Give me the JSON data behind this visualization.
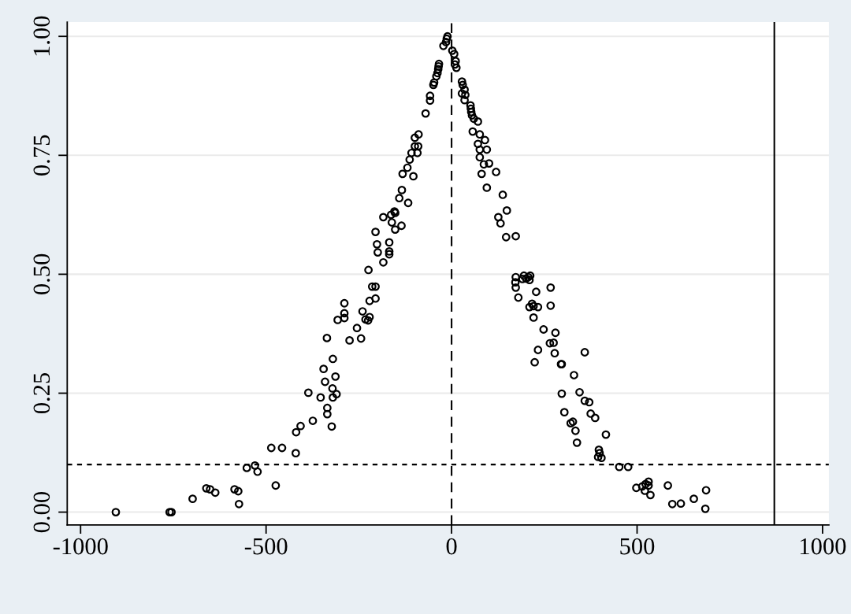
{
  "chart_data": {
    "type": "scatter",
    "x": [
      -905,
      -760,
      -755,
      -698,
      -661,
      -651,
      -637,
      -585,
      -575,
      -573,
      -552,
      -530,
      -523,
      -486,
      -474,
      -457,
      -420,
      -419,
      -407,
      -386,
      -374,
      -353,
      -336,
      -345,
      -341,
      -320,
      -313,
      -321,
      -320,
      -310,
      -335,
      -335,
      -323,
      -307,
      -289,
      -289,
      -289,
      -275,
      -255,
      -244,
      -240,
      -232,
      -225,
      -221,
      -224,
      -221,
      -214,
      -205,
      -205,
      -205,
      -201,
      -199,
      -184,
      -184,
      -168,
      -168,
      -168,
      -163,
      -154,
      -152,
      -161,
      -152,
      -135,
      -141,
      -134,
      -117,
      -132,
      -119,
      -103,
      -113,
      -108,
      -92,
      -99,
      -90,
      -89,
      -99,
      -70,
      -58,
      -58,
      -49,
      -47,
      -41,
      -38,
      -36,
      -35,
      -34,
      -22,
      -15,
      -13,
      -11,
      2,
      7,
      11,
      13,
      9,
      28,
      30,
      35,
      37,
      28,
      35,
      51,
      52,
      53,
      55,
      60,
      71,
      57,
      76,
      90,
      71,
      76,
      95,
      76,
      87,
      101,
      81,
      95,
      120,
      138,
      149,
      126,
      132,
      147,
      173,
      173,
      172,
      173,
      180,
      191,
      195,
      201,
      207,
      212,
      210,
      228,
      267,
      267,
      210,
      217,
      221,
      233,
      221,
      248,
      280,
      265,
      275,
      278,
      233,
      224,
      295,
      297,
      359,
      330,
      297,
      345,
      359,
      371,
      375,
      387,
      304,
      321,
      327,
      334,
      338,
      416,
      397,
      399,
      395,
      404,
      452,
      476,
      498,
      514,
      523,
      531,
      521,
      536,
      531,
      583,
      595,
      618,
      653,
      686,
      684
    ],
    "values": [
      0.0,
      0.0,
      0.0,
      0.028,
      0.05,
      0.048,
      0.041,
      0.048,
      0.044,
      0.017,
      0.093,
      0.098,
      0.085,
      0.135,
      0.056,
      0.135,
      0.124,
      0.168,
      0.181,
      0.251,
      0.192,
      0.241,
      0.366,
      0.301,
      0.274,
      0.322,
      0.285,
      0.26,
      0.241,
      0.248,
      0.219,
      0.206,
      0.18,
      0.404,
      0.439,
      0.418,
      0.408,
      0.361,
      0.387,
      0.365,
      0.422,
      0.405,
      0.403,
      0.41,
      0.509,
      0.444,
      0.474,
      0.474,
      0.449,
      0.589,
      0.563,
      0.546,
      0.525,
      0.62,
      0.567,
      0.548,
      0.542,
      0.625,
      0.632,
      0.629,
      0.609,
      0.594,
      0.602,
      0.66,
      0.677,
      0.65,
      0.711,
      0.724,
      0.706,
      0.741,
      0.755,
      0.755,
      0.769,
      0.769,
      0.794,
      0.787,
      0.838,
      0.865,
      0.875,
      0.898,
      0.903,
      0.916,
      0.923,
      0.931,
      0.937,
      0.942,
      0.98,
      0.988,
      0.995,
      1.0,
      0.97,
      0.963,
      0.948,
      0.934,
      0.941,
      0.905,
      0.898,
      0.888,
      0.877,
      0.88,
      0.866,
      0.855,
      0.848,
      0.841,
      0.834,
      0.827,
      0.821,
      0.8,
      0.794,
      0.782,
      0.774,
      0.762,
      0.762,
      0.746,
      0.731,
      0.733,
      0.711,
      0.682,
      0.715,
      0.667,
      0.634,
      0.62,
      0.607,
      0.578,
      0.58,
      0.494,
      0.483,
      0.472,
      0.451,
      0.49,
      0.497,
      0.491,
      0.494,
      0.497,
      0.488,
      0.463,
      0.472,
      0.434,
      0.431,
      0.438,
      0.433,
      0.431,
      0.409,
      0.384,
      0.377,
      0.355,
      0.356,
      0.334,
      0.341,
      0.315,
      0.311,
      0.311,
      0.336,
      0.288,
      0.249,
      0.252,
      0.234,
      0.231,
      0.207,
      0.198,
      0.21,
      0.187,
      0.19,
      0.171,
      0.146,
      0.163,
      0.131,
      0.124,
      0.116,
      0.114,
      0.095,
      0.095,
      0.051,
      0.054,
      0.059,
      0.064,
      0.045,
      0.036,
      0.056,
      0.056,
      0.017,
      0.018,
      0.028,
      0.046,
      0.007
    ],
    "color": "#000000",
    "marker": "circle",
    "xlim": [
      -1036,
      1017
    ],
    "ylim": [
      -0.027,
      1.03
    ],
    "xticks": [
      -1000,
      -500,
      0,
      500,
      1000
    ],
    "yticks": [
      {
        "value": 0,
        "label": "0.00"
      },
      {
        "value": 0.25,
        "label": "0.25"
      },
      {
        "value": 0.5,
        "label": "0.50"
      },
      {
        "value": 0.75,
        "label": "0.75"
      },
      {
        "value": 1,
        "label": "1.00"
      }
    ],
    "grid": "y",
    "ref_lines": [
      {
        "axis": "x",
        "value": 0,
        "line_style": "dashed"
      },
      {
        "axis": "x",
        "value": 870,
        "line_style": "solid"
      },
      {
        "axis": "y",
        "value": 0.1,
        "line_style": "dotted"
      }
    ]
  }
}
